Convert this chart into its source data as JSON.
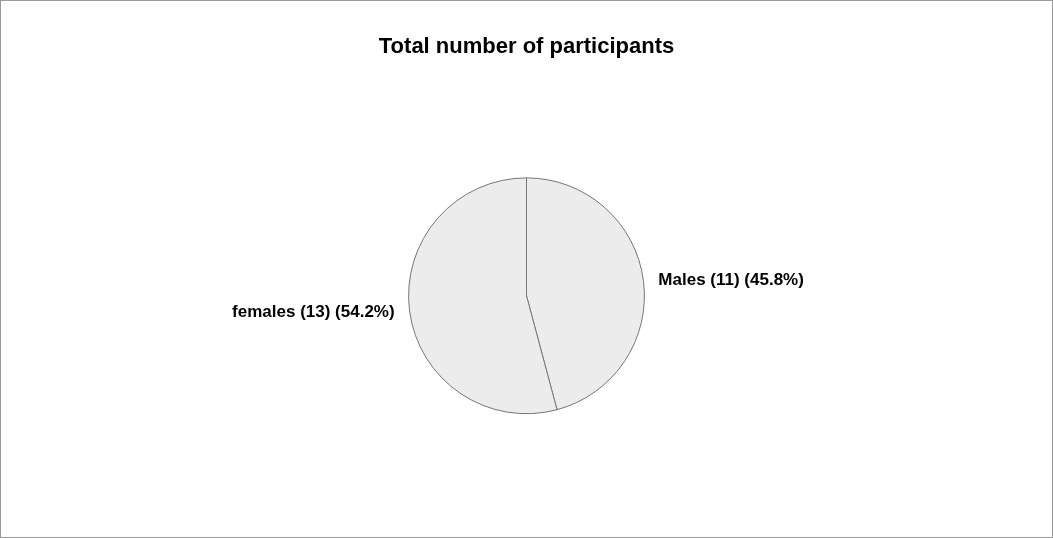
{
  "chart_data": {
    "type": "pie",
    "title": "Total number of participants",
    "categories": [
      "Males",
      "females"
    ],
    "values": [
      11,
      13
    ],
    "value_labels": [
      "(11) (45.8%)",
      "(13) (54.2%)"
    ],
    "colors": [
      "#ececec",
      "#ececec"
    ]
  }
}
